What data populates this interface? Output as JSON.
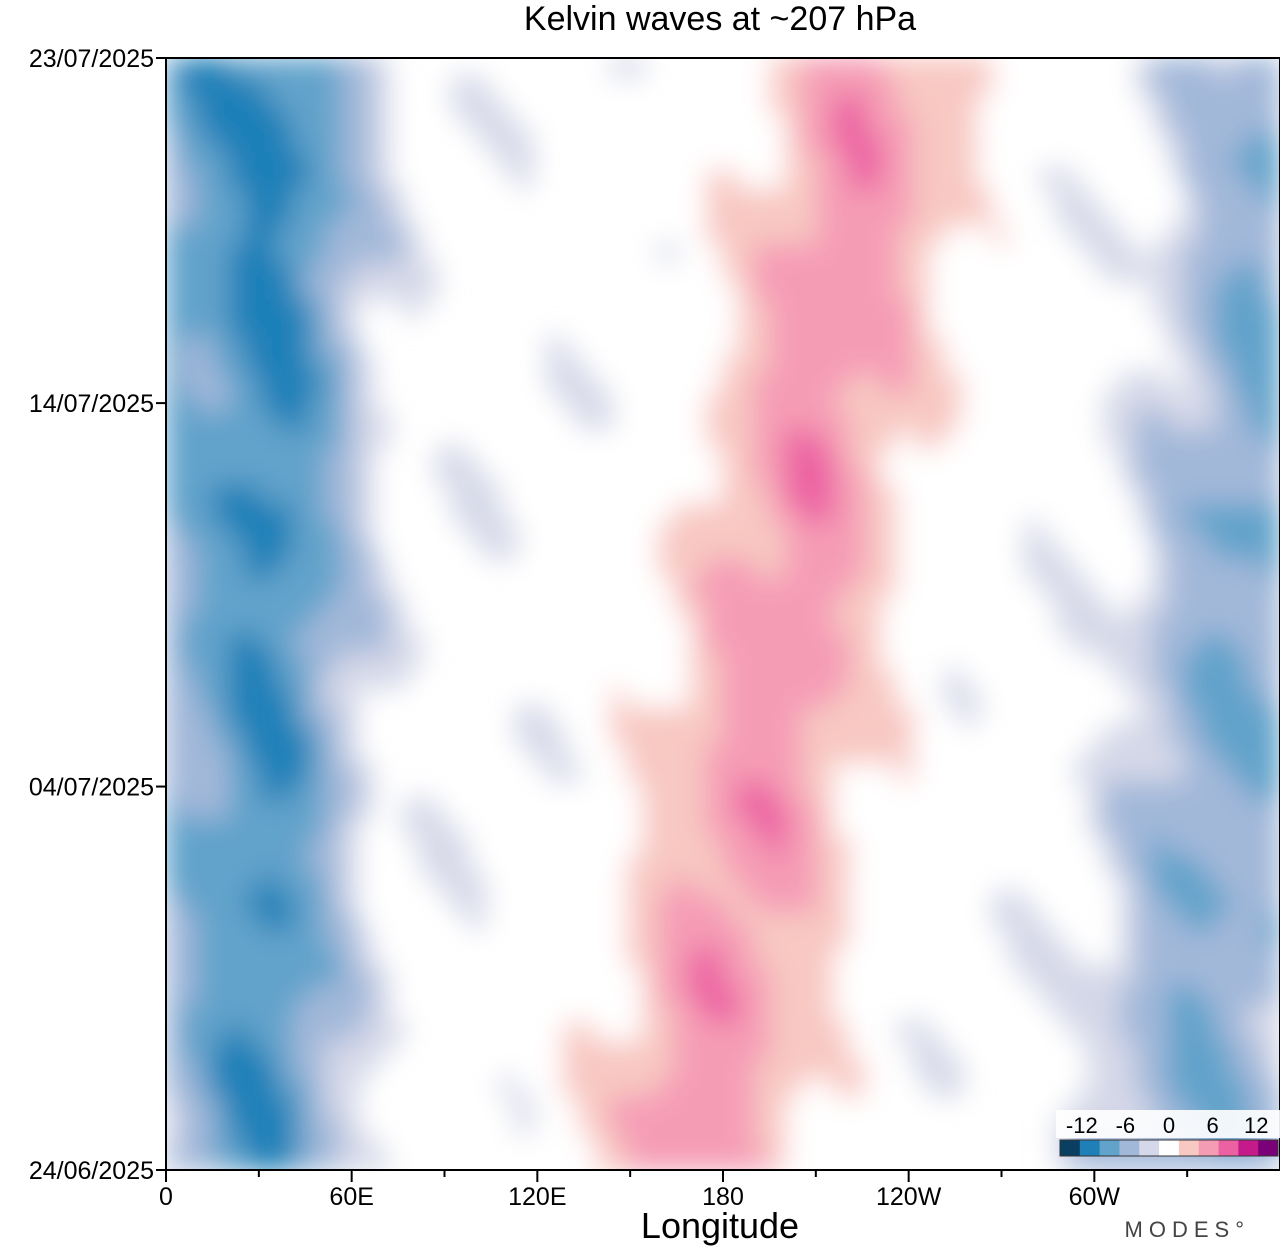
{
  "chart_data": {
    "type": "heatmap",
    "title": "Kelvin waves at ~207 hPa",
    "xlabel": "Longitude",
    "ylabel": "",
    "x_ticks": [
      "0",
      "60E",
      "120E",
      "180",
      "120W",
      "60W"
    ],
    "x_tick_values": [
      0,
      60,
      120,
      180,
      240,
      300
    ],
    "xlim": [
      0,
      360
    ],
    "y_ticks": [
      "23/07/2025",
      "14/07/2025",
      "04/07/2025",
      "24/06/2025"
    ],
    "y_tick_values": [
      29,
      20,
      10,
      0
    ],
    "ylim": [
      0,
      29
    ],
    "colorbar": {
      "labels": [
        "-12",
        "-6",
        "0",
        "6",
        "12"
      ],
      "levels": [
        -15,
        -12,
        -9,
        -6,
        -3,
        0,
        3,
        6,
        9,
        12,
        15
      ],
      "colors": [
        "#0b3f62",
        "#1f80b8",
        "#62a3cb",
        "#a2b8d9",
        "#d5d8e8",
        "#ffffff",
        "#f8c8c2",
        "#f59cb5",
        "#ec61a2",
        "#c51b8a",
        "#7a0177"
      ]
    },
    "anomaly_bands": [
      {
        "name": "negative-band-1",
        "sign": -1,
        "lon_at_start": 30,
        "lon_at_end": 40,
        "width": 50,
        "amplitude": 9
      },
      {
        "name": "positive-band-1",
        "sign": 1,
        "lon_at_start": 170,
        "lon_at_end": 230,
        "width": 70,
        "amplitude": 8
      },
      {
        "name": "negative-band-2",
        "sign": -1,
        "lon_at_start": 330,
        "lon_at_end": 360,
        "width": 60,
        "amplitude": 6
      }
    ],
    "brand_text": "MODES°"
  }
}
